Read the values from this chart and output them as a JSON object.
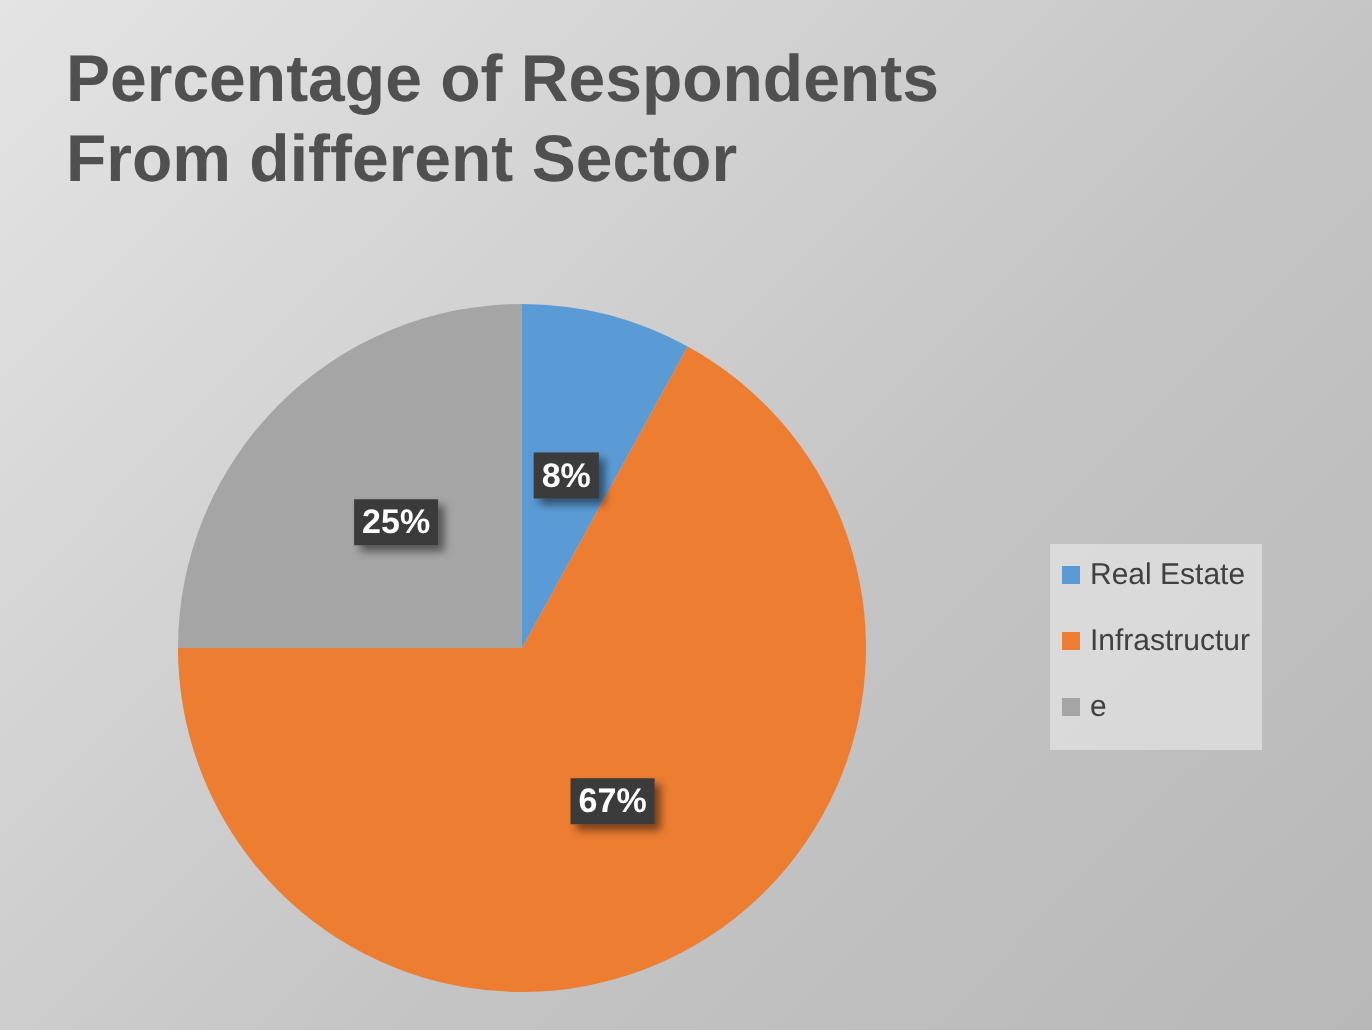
{
  "chart_data": {
    "type": "pie",
    "title": "Percentage of Respondents\nFrom different Sector",
    "categories": [
      "Real Estate",
      "Infrastructur",
      "e"
    ],
    "values": [
      8,
      67,
      25
    ],
    "colors": [
      "#5b9bd5",
      "#ed7d31",
      "#a5a5a5"
    ],
    "value_labels": [
      "8%",
      "67%",
      "25%"
    ],
    "legend": "right"
  }
}
